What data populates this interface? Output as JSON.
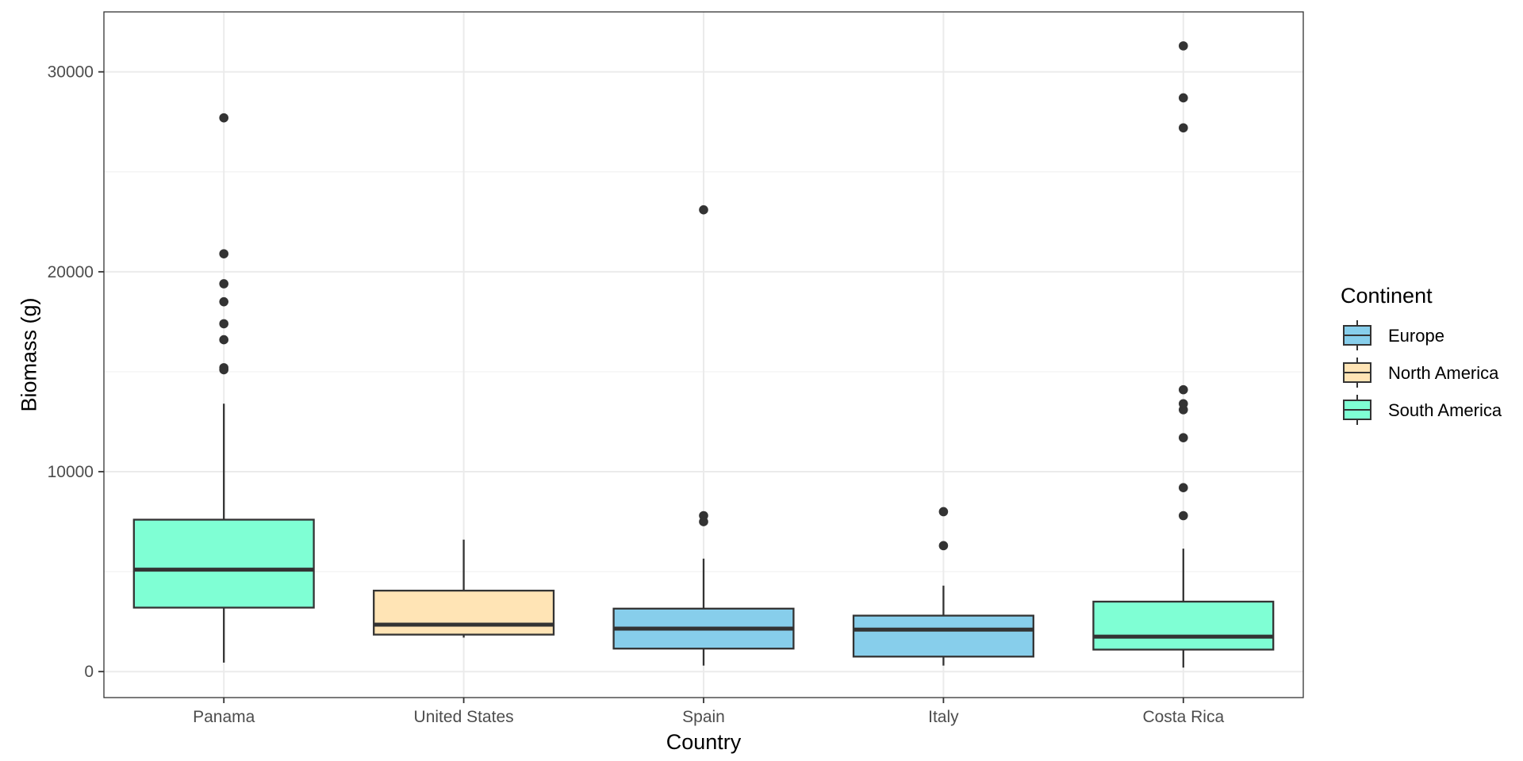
{
  "chart_data": {
    "type": "boxplot",
    "xlabel": "Country",
    "ylabel": "Biomass (g)",
    "ylim": [
      -1300,
      33000
    ],
    "y_ticks": [
      0,
      10000,
      20000,
      30000
    ],
    "y_tick_labels": [
      "0",
      "10000",
      "20000",
      "30000"
    ],
    "y_minor_ticks": [
      5000,
      15000,
      25000
    ],
    "grid": true,
    "legend": {
      "title": "Continent",
      "placement": "right",
      "entries": [
        {
          "label": "Europe",
          "color": "#87CEEB"
        },
        {
          "label": "North America",
          "color": "#FFE4B5"
        },
        {
          "label": "South America",
          "color": "#7FFFD4"
        }
      ]
    },
    "categories": [
      "Panama",
      "United States",
      "Spain",
      "Italy",
      "Costa Rica"
    ],
    "boxes": [
      {
        "category": "Panama",
        "continent": "South America",
        "color": "#7FFFD4",
        "whisker_low": 450,
        "q1": 3200,
        "median": 5100,
        "q3": 7600,
        "whisker_high": 13400,
        "outliers": [
          15100,
          15200,
          16600,
          17400,
          18500,
          19400,
          20900,
          27700
        ]
      },
      {
        "category": "United States",
        "continent": "North America",
        "color": "#FFE4B5",
        "whisker_low": 1700,
        "q1": 1850,
        "median": 2350,
        "q3": 4050,
        "whisker_high": 6600,
        "outliers": []
      },
      {
        "category": "Spain",
        "continent": "Europe",
        "color": "#87CEEB",
        "whisker_low": 300,
        "q1": 1150,
        "median": 2150,
        "q3": 3150,
        "whisker_high": 5650,
        "outliers": [
          7500,
          7800,
          23100
        ]
      },
      {
        "category": "Italy",
        "continent": "Europe",
        "color": "#87CEEB",
        "whisker_low": 300,
        "q1": 750,
        "median": 2100,
        "q3": 2800,
        "whisker_high": 4300,
        "outliers": [
          6300,
          8000
        ]
      },
      {
        "category": "Costa Rica",
        "continent": "South America",
        "color": "#7FFFD4",
        "whisker_low": 200,
        "q1": 1100,
        "median": 1750,
        "q3": 3500,
        "whisker_high": 6150,
        "outliers": [
          7800,
          9200,
          11700,
          13100,
          13400,
          14100,
          27200,
          28700,
          31300
        ]
      }
    ]
  }
}
